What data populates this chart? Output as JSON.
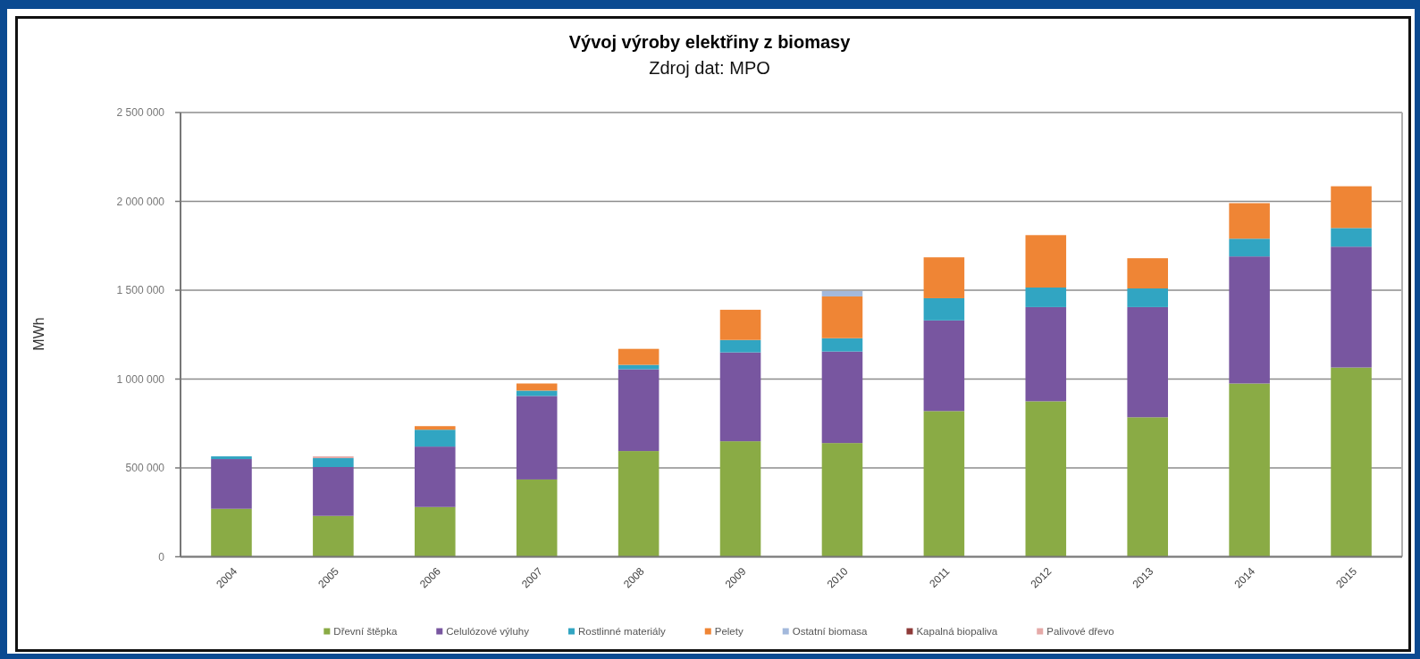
{
  "chart_data": {
    "type": "bar",
    "title": "Vývoj výroby elektřiny z biomasy",
    "subtitle": "Zdroj dat: MPO",
    "ylabel": "MWh",
    "categories": [
      "2004",
      "2005",
      "2006",
      "2007",
      "2008",
      "2009",
      "2010",
      "2011",
      "2012",
      "2013",
      "2014",
      "2015"
    ],
    "stacked": true,
    "ylim": [
      0,
      2500000
    ],
    "yticks": [
      {
        "value": 0,
        "label": "0"
      },
      {
        "value": 500000,
        "label": "500 000"
      },
      {
        "value": 1000000,
        "label": "1 000 000"
      },
      {
        "value": 1500000,
        "label": "1 500 000"
      },
      {
        "value": 2000000,
        "label": "2 000 000"
      },
      {
        "value": 2500000,
        "label": "2 500 000"
      }
    ],
    "grid": "y",
    "legend": "bottom",
    "series": [
      {
        "name": "Dřevní štěpka",
        "color": "#8aab45",
        "values": [
          270000,
          230000,
          280000,
          435000,
          595000,
          650000,
          640000,
          820000,
          875000,
          785000,
          975000,
          1065000
        ]
      },
      {
        "name": "Celulózové výluhy",
        "color": "#7856a0",
        "values": [
          280000,
          275000,
          340000,
          470000,
          460000,
          500000,
          515000,
          510000,
          530000,
          620000,
          715000,
          680000
        ]
      },
      {
        "name": "Rostlinné materiály",
        "color": "#31a5c2",
        "values": [
          15000,
          50000,
          95000,
          30000,
          25000,
          70000,
          75000,
          125000,
          110000,
          105000,
          100000,
          105000
        ]
      },
      {
        "name": "Pelety",
        "color": "#ef8535",
        "values": [
          null,
          null,
          20000,
          40000,
          90000,
          170000,
          235000,
          230000,
          295000,
          170000,
          200000,
          235000
        ]
      },
      {
        "name": "Ostatní biomasa",
        "color": "#a3b9dc",
        "values": [
          null,
          null,
          null,
          null,
          null,
          null,
          30000,
          null,
          null,
          null,
          null,
          null
        ]
      },
      {
        "name": "Kapalná biopaliva",
        "color": "#8e3a38",
        "values": [
          null,
          null,
          null,
          null,
          null,
          null,
          null,
          null,
          null,
          null,
          null,
          null
        ]
      },
      {
        "name": "Palivové dřevo",
        "color": "#e5aaa8",
        "values": [
          null,
          10000,
          null,
          null,
          null,
          null,
          null,
          null,
          null,
          null,
          null,
          null
        ]
      }
    ]
  }
}
